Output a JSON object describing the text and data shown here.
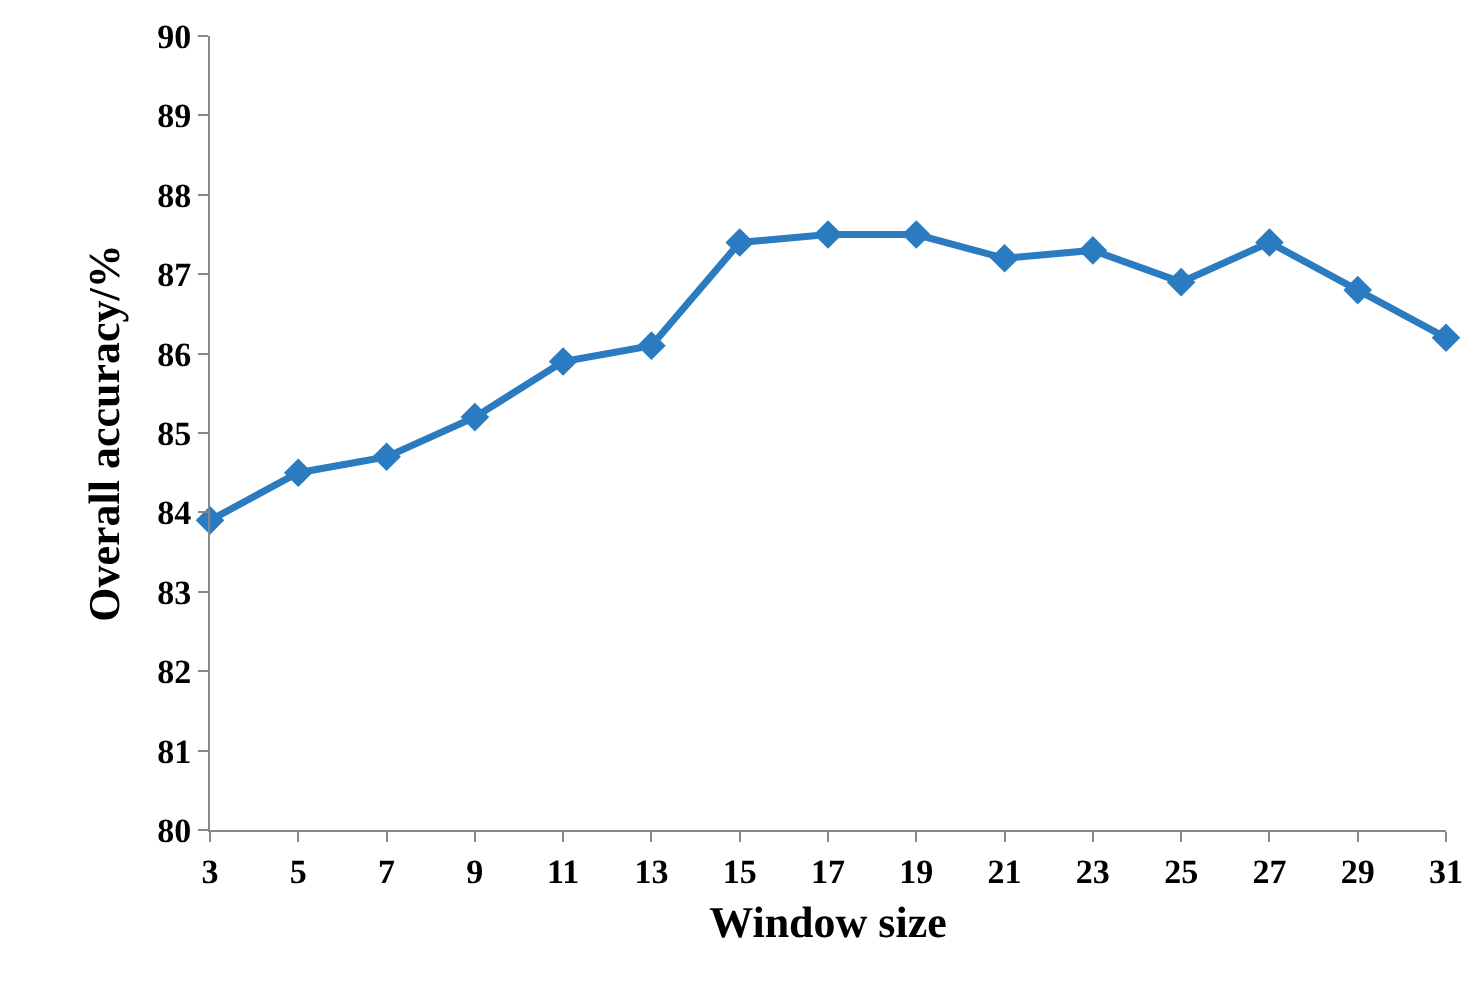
{
  "chart_data": {
    "type": "line",
    "xlabel": "Window size",
    "ylabel": "Overall accuracy/%",
    "x": [
      3,
      5,
      7,
      9,
      11,
      13,
      15,
      17,
      19,
      21,
      23,
      25,
      27,
      29,
      31
    ],
    "series": [
      {
        "color": "#2b7bc0",
        "values": [
          83.9,
          84.5,
          84.7,
          85.2,
          85.9,
          86.1,
          87.4,
          87.5,
          87.5,
          87.2,
          87.3,
          86.9,
          87.4,
          86.8,
          86.2
        ]
      }
    ],
    "xlim": [
      3,
      31
    ],
    "xticks": [
      3,
      5,
      7,
      9,
      11,
      13,
      15,
      17,
      19,
      21,
      23,
      25,
      27,
      29,
      31
    ],
    "ylim": [
      80,
      90
    ],
    "yticks": [
      80,
      81,
      82,
      83,
      84,
      85,
      86,
      87,
      88,
      89,
      90
    ],
    "grid": false,
    "marker": "diamond",
    "line_style": "solid"
  }
}
